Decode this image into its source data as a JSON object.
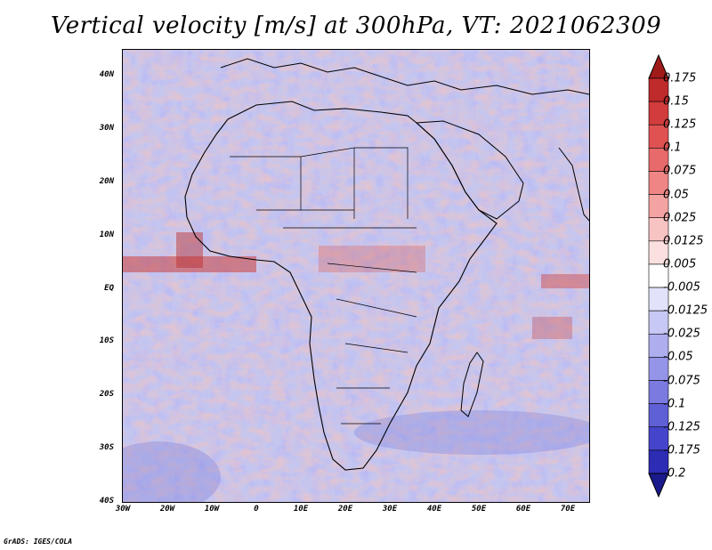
{
  "title": "Vertical velocity [m/s] at 300hPa, VT: 2021062309",
  "map": {
    "lat_range": [
      -40,
      45
    ],
    "lon_range": [
      -30,
      75
    ],
    "lat_ticks": [
      "40N",
      "30N",
      "20N",
      "10N",
      "EQ",
      "10S",
      "20S",
      "30S",
      "40S"
    ],
    "lon_ticks": [
      "30W",
      "20W",
      "10W",
      "0",
      "10E",
      "20E",
      "30E",
      "40E",
      "50E",
      "60E",
      "70E"
    ]
  },
  "colorbar": {
    "levels": [
      "0.175",
      "0.15",
      "0.125",
      "0.1",
      "0.075",
      "0.05",
      "0.025",
      "0.0125",
      "0.005",
      "-0.005",
      "-0.0125",
      "-0.025",
      "-0.05",
      "-0.075",
      "-0.1",
      "-0.125",
      "-0.175",
      "-0.2"
    ],
    "colors": [
      "#a01a1a",
      "#bf2a2a",
      "#d23c3c",
      "#e05252",
      "#e86a6a",
      "#ef8585",
      "#f4a3a3",
      "#f8c3c3",
      "#fbe0e0",
      "#ffffff",
      "#e2e2fb",
      "#c8c8f5",
      "#aeaeef",
      "#9494e8",
      "#7a7ae0",
      "#5f5fd6",
      "#4545cc",
      "#2c2cb4",
      "#1a1a8c"
    ]
  },
  "credit": "GrADS: IGES/COLA"
}
